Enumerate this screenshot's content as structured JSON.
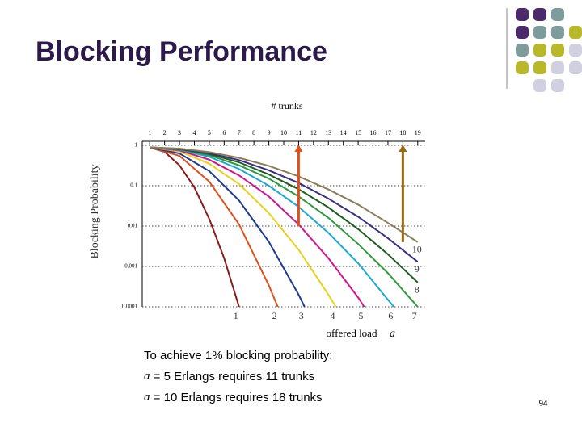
{
  "title": "Blocking Performance",
  "chart_data": {
    "type": "line",
    "top_axis_label": "# trunks",
    "ylabel": "Blocking Probability",
    "xlabel": "offered load",
    "xlabel_var": "a",
    "log_y": true,
    "grid": true,
    "xlim": [
      0.5,
      19.5
    ],
    "xticks": [
      1,
      2,
      3,
      4,
      5,
      6,
      7,
      8,
      9,
      10,
      11,
      12,
      13,
      14,
      15,
      16,
      17,
      18,
      19
    ],
    "ylim": [
      0.0001,
      1
    ],
    "yticks": [
      1,
      0.1,
      0.01,
      0.001,
      0.0001
    ],
    "series": [
      {
        "name": "1",
        "color": "#8b1a1a",
        "x": [
          1,
          2,
          3,
          4,
          5,
          6,
          7
        ],
        "values": [
          0.89,
          0.69,
          0.32,
          0.091,
          0.015,
          0.0016,
          0.0001
        ]
      },
      {
        "name": "2",
        "color": "#e0501a",
        "x": [
          1,
          3,
          5,
          7,
          9,
          9.6
        ],
        "values": [
          0.89,
          0.55,
          0.126,
          0.011,
          0.00034,
          0.0001
        ]
      },
      {
        "name": "3",
        "color": "#1f3a93",
        "x": [
          1,
          3,
          5,
          7,
          9,
          11,
          11.4
        ],
        "values": [
          0.89,
          0.63,
          0.23,
          0.043,
          0.0041,
          0.0002,
          0.0001
        ]
      },
      {
        "name": "4",
        "color": "#e8d21a",
        "x": [
          1,
          3,
          5,
          7,
          9,
          11,
          13,
          13.5
        ],
        "values": [
          0.89,
          0.71,
          0.35,
          0.11,
          0.021,
          0.0026,
          0.0002,
          0.0001
        ]
      },
      {
        "name": "5",
        "color": "#d4148c",
        "x": [
          1,
          3,
          5,
          7,
          9,
          11,
          13,
          15,
          15.4
        ],
        "values": [
          0.89,
          0.75,
          0.44,
          0.18,
          0.054,
          0.011,
          0.0016,
          0.00017,
          0.0001
        ]
      },
      {
        "name": "6",
        "color": "#1aa8d4",
        "x": [
          1,
          3,
          5,
          7,
          9,
          11,
          13,
          15,
          17,
          17.4
        ],
        "values": [
          0.89,
          0.78,
          0.52,
          0.26,
          0.1,
          0.03,
          0.0068,
          0.0012,
          0.00015,
          0.0001
        ]
      },
      {
        "name": "7",
        "color": "#2e9b3a",
        "x": [
          1,
          3,
          5,
          7,
          9,
          11,
          13,
          15,
          17,
          19
        ],
        "values": [
          0.89,
          0.8,
          0.57,
          0.32,
          0.15,
          0.054,
          0.016,
          0.0036,
          0.00068,
          0.0001
        ]
      },
      {
        "name": "8",
        "color": "#1b5e20",
        "x": [
          1,
          3,
          5,
          7,
          9,
          11,
          13,
          15,
          17,
          19
        ],
        "values": [
          0.89,
          0.81,
          0.61,
          0.38,
          0.19,
          0.082,
          0.029,
          0.0084,
          0.002,
          0.0004
        ]
      },
      {
        "name": "9",
        "color": "#3b2c83",
        "x": [
          1,
          3,
          5,
          7,
          9,
          11,
          13,
          15,
          17,
          19
        ],
        "values": [
          0.89,
          0.82,
          0.64,
          0.43,
          0.24,
          0.117,
          0.048,
          0.017,
          0.005,
          0.0013
        ]
      },
      {
        "name": "10",
        "color": "#8b7d5a",
        "x": [
          1,
          3,
          5,
          7,
          9,
          11,
          13,
          15,
          17,
          19
        ],
        "values": [
          0.89,
          0.83,
          0.68,
          0.49,
          0.31,
          0.17,
          0.081,
          0.034,
          0.012,
          0.004
        ]
      }
    ],
    "arrows": [
      {
        "x": 11,
        "from": 0.01,
        "to": 1,
        "color": "#e0501a"
      },
      {
        "x": 18,
        "from": 0.004,
        "to": 1,
        "color": "#9a6a10"
      }
    ]
  },
  "text": {
    "heading": "To achieve 1% blocking probability:",
    "lines": [
      {
        "var": "a",
        "text": "= 5 Erlangs requires 11 trunks"
      },
      {
        "var": "a",
        "text": "= 10 Erlangs requires 18 trunks"
      }
    ]
  },
  "page_number": "94"
}
